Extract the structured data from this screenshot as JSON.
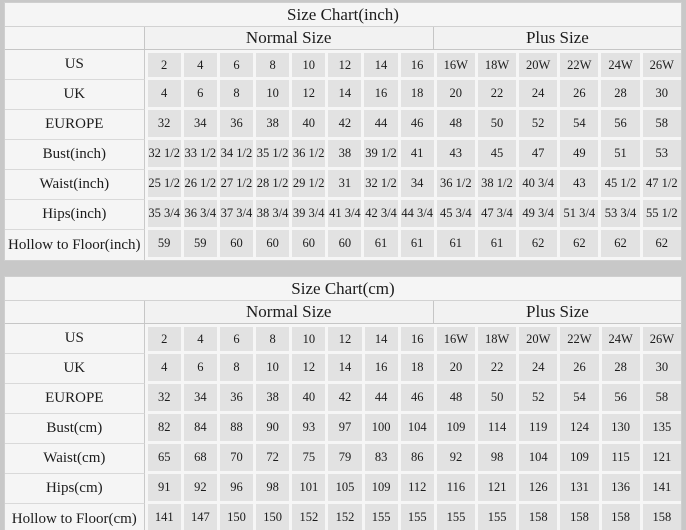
{
  "colors": {
    "page_background": "#c8c8c8",
    "panel_background": "#f5f5f5",
    "data_cell_background": "#e2e2e2"
  },
  "tables": [
    {
      "title": "Size Chart(inch)",
      "group_headers": [
        "Normal Size",
        "Plus Size"
      ],
      "normal_count": 8,
      "plus_count": 6,
      "rows": [
        {
          "label": "US",
          "values": [
            "2",
            "4",
            "6",
            "8",
            "10",
            "12",
            "14",
            "16",
            "16W",
            "18W",
            "20W",
            "22W",
            "24W",
            "26W"
          ]
        },
        {
          "label": "UK",
          "values": [
            "4",
            "6",
            "8",
            "10",
            "12",
            "14",
            "16",
            "18",
            "20",
            "22",
            "24",
            "26",
            "28",
            "30"
          ]
        },
        {
          "label": "EUROPE",
          "values": [
            "32",
            "34",
            "36",
            "38",
            "40",
            "42",
            "44",
            "46",
            "48",
            "50",
            "52",
            "54",
            "56",
            "58"
          ]
        },
        {
          "label": "Bust(inch)",
          "values": [
            "32 1/2",
            "33 1/2",
            "34 1/2",
            "35 1/2",
            "36 1/2",
            "38",
            "39 1/2",
            "41",
            "43",
            "45",
            "47",
            "49",
            "51",
            "53"
          ]
        },
        {
          "label": "Waist(inch)",
          "values": [
            "25 1/2",
            "26 1/2",
            "27 1/2",
            "28 1/2",
            "29 1/2",
            "31",
            "32 1/2",
            "34",
            "36 1/2",
            "38 1/2",
            "40 3/4",
            "43",
            "45 1/2",
            "47 1/2"
          ]
        },
        {
          "label": "Hips(inch)",
          "values": [
            "35 3/4",
            "36 3/4",
            "37 3/4",
            "38 3/4",
            "39 3/4",
            "41 3/4",
            "42 3/4",
            "44 3/4",
            "45 3/4",
            "47 3/4",
            "49 3/4",
            "51 3/4",
            "53 3/4",
            "55 1/2"
          ]
        },
        {
          "label": "Hollow to Floor(inch)",
          "values": [
            "59",
            "59",
            "60",
            "60",
            "60",
            "60",
            "61",
            "61",
            "61",
            "61",
            "62",
            "62",
            "62",
            "62"
          ]
        }
      ]
    },
    {
      "title": "Size Chart(cm)",
      "group_headers": [
        "Normal Size",
        "Plus Size"
      ],
      "normal_count": 8,
      "plus_count": 6,
      "rows": [
        {
          "label": "US",
          "values": [
            "2",
            "4",
            "6",
            "8",
            "10",
            "12",
            "14",
            "16",
            "16W",
            "18W",
            "20W",
            "22W",
            "24W",
            "26W"
          ]
        },
        {
          "label": "UK",
          "values": [
            "4",
            "6",
            "8",
            "10",
            "12",
            "14",
            "16",
            "18",
            "20",
            "22",
            "24",
            "26",
            "28",
            "30"
          ]
        },
        {
          "label": "EUROPE",
          "values": [
            "32",
            "34",
            "36",
            "38",
            "40",
            "42",
            "44",
            "46",
            "48",
            "50",
            "52",
            "54",
            "56",
            "58"
          ]
        },
        {
          "label": "Bust(cm)",
          "values": [
            "82",
            "84",
            "88",
            "90",
            "93",
            "97",
            "100",
            "104",
            "109",
            "114",
            "119",
            "124",
            "130",
            "135"
          ]
        },
        {
          "label": "Waist(cm)",
          "values": [
            "65",
            "68",
            "70",
            "72",
            "75",
            "79",
            "83",
            "86",
            "92",
            "98",
            "104",
            "109",
            "115",
            "121"
          ]
        },
        {
          "label": "Hips(cm)",
          "values": [
            "91",
            "92",
            "96",
            "98",
            "101",
            "105",
            "109",
            "112",
            "116",
            "121",
            "126",
            "131",
            "136",
            "141"
          ]
        },
        {
          "label": "Hollow to Floor(cm)",
          "values": [
            "141",
            "147",
            "150",
            "150",
            "152",
            "152",
            "155",
            "155",
            "155",
            "155",
            "158",
            "158",
            "158",
            "158"
          ]
        }
      ]
    }
  ]
}
